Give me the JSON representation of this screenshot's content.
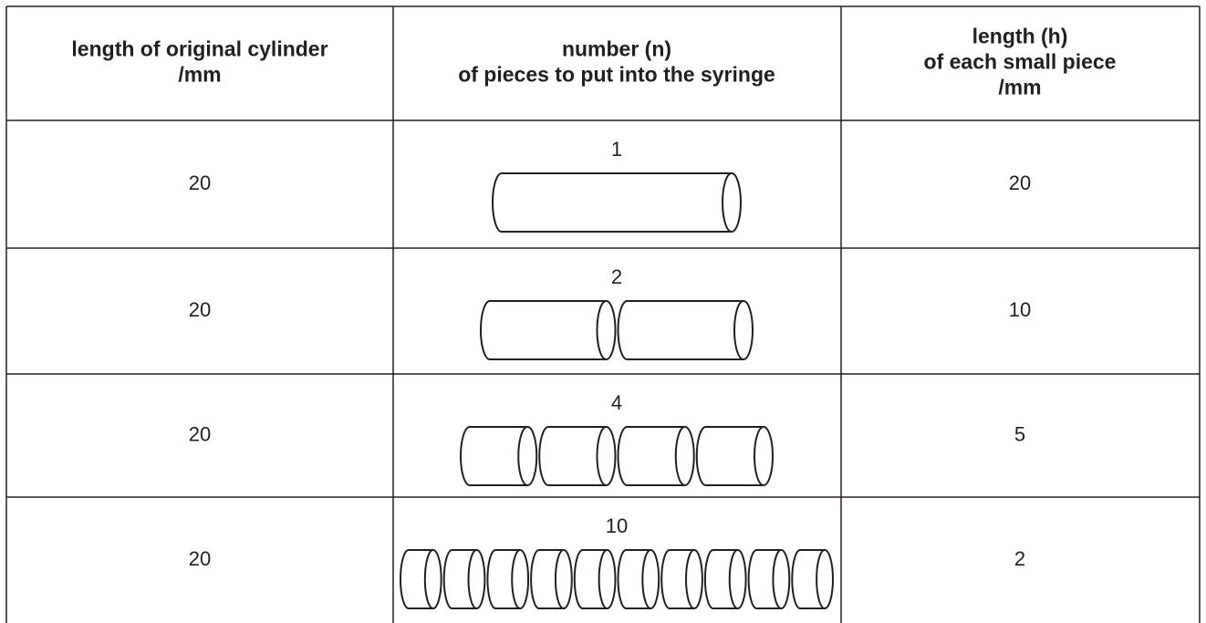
{
  "table": {
    "header": [
      [
        "length of original cylinder",
        "/mm"
      ],
      [
        "number (n)",
        "of pieces to put into the syringe"
      ],
      [
        "length (h)",
        "of each small piece",
        "/mm"
      ]
    ],
    "rows": [
      [
        20,
        1,
        20
      ],
      [
        20,
        2,
        10
      ],
      [
        20,
        4,
        5
      ],
      [
        20,
        10,
        2
      ]
    ]
  }
}
